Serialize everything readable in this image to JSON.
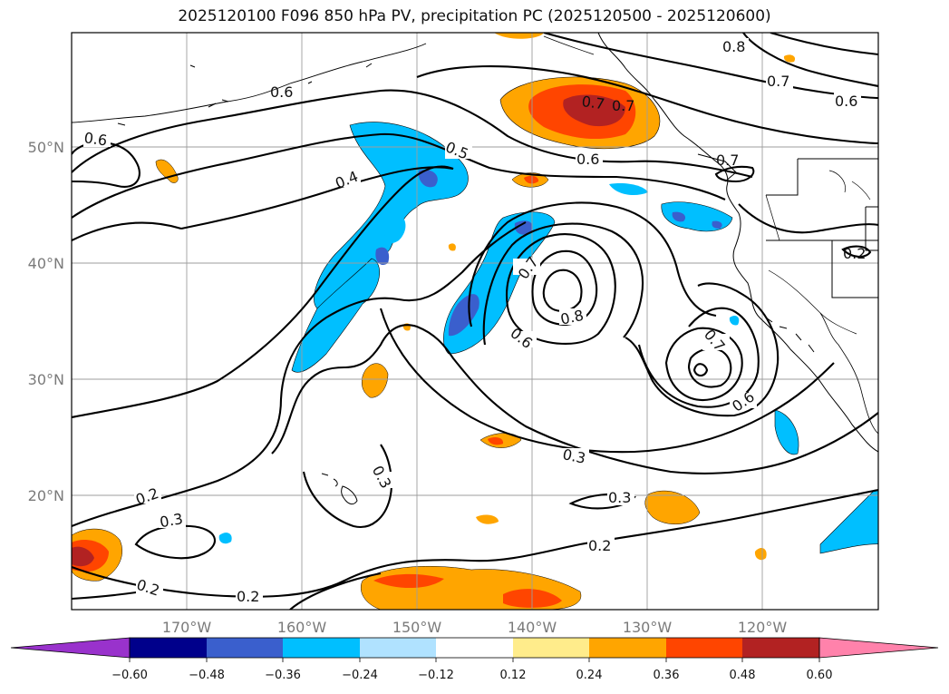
{
  "title": "2025120100 F096 850 hPa PV, precipitation PC (2025120500 - 2025120600)",
  "map": {
    "lat_labels": [
      "50°N",
      "40°N",
      "30°N",
      "20°N"
    ],
    "lon_labels": [
      "170°W",
      "160°W",
      "150°W",
      "140°W",
      "130°W",
      "120°W"
    ],
    "grid": true
  },
  "colorbar": {
    "ticks": [
      "−0.60",
      "−0.48",
      "−0.36",
      "−0.24",
      "−0.12",
      "0.12",
      "0.24",
      "0.36",
      "0.48",
      "0.60"
    ],
    "colors": [
      "#9932CC",
      "#00008B",
      "#3A5FCD",
      "#00BFFF",
      "#B0E2FF",
      "#FFFFFF",
      "#FFEC8B",
      "#FFA500",
      "#FF4500",
      "#B22222",
      "#FF82AB"
    ],
    "extend": "both"
  },
  "contour_labels": [
    "0.8",
    "0.7",
    "0.6",
    "0.6",
    "0.7",
    "0.6",
    "0.5",
    "0.6",
    "0.4",
    "0.7",
    "0.7",
    "0.8",
    "0.6",
    "0.7",
    "0.6",
    "0.3",
    "0.3",
    "0.3",
    "0.2",
    "0.2",
    "0.3",
    "0.2",
    "0.2",
    "0.2",
    "0.7"
  ]
}
